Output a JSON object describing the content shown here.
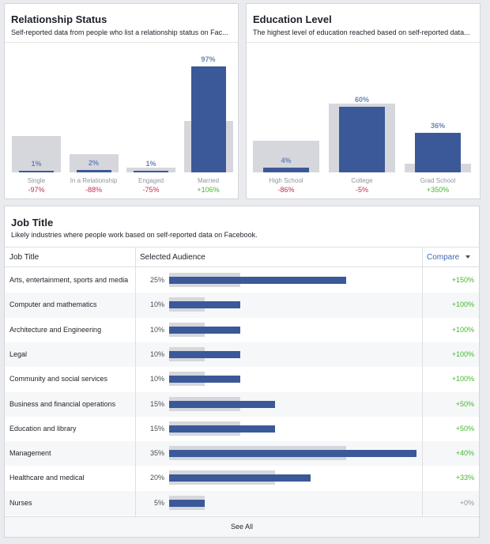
{
  "relationship": {
    "title": "Relationship Status",
    "subtitle": "Self-reported data from people who list a relationship status on Fac...",
    "items": [
      {
        "label": "Single",
        "pct": "1%",
        "cmp": "-97%",
        "sel": 1,
        "base": 33
      },
      {
        "label": "In a Relationship",
        "pct": "2%",
        "cmp": "-88%",
        "sel": 2,
        "base": 17
      },
      {
        "label": "Engaged",
        "pct": "1%",
        "cmp": "-75%",
        "sel": 1,
        "base": 4
      },
      {
        "label": "Married",
        "pct": "97%",
        "cmp": "+106%",
        "sel": 97,
        "base": 47
      }
    ]
  },
  "education": {
    "title": "Education Level",
    "subtitle": "The highest level of education reached based on self-reported data...",
    "items": [
      {
        "label": "High School",
        "pct": "4%",
        "cmp": "-86%",
        "sel": 4,
        "base": 29
      },
      {
        "label": "College",
        "pct": "60%",
        "cmp": "-5%",
        "sel": 60,
        "base": 63
      },
      {
        "label": "Grad School",
        "pct": "36%",
        "cmp": "+350%",
        "sel": 36,
        "base": 8
      }
    ]
  },
  "jobs": {
    "title": "Job Title",
    "subtitle": "Likely industries where people work based on self-reported data on Facebook.",
    "col_title": "Job Title",
    "col_audience": "Selected Audience",
    "col_compare": "Compare",
    "see_all": "See All",
    "rows": [
      {
        "name": "Arts, entertainment, sports and media",
        "pct": "25%",
        "sel": 25,
        "base": 10,
        "cmp": "+150%"
      },
      {
        "name": "Computer and mathematics",
        "pct": "10%",
        "sel": 10,
        "base": 5,
        "cmp": "+100%"
      },
      {
        "name": "Architecture and Engineering",
        "pct": "10%",
        "sel": 10,
        "base": 5,
        "cmp": "+100%"
      },
      {
        "name": "Legal",
        "pct": "10%",
        "sel": 10,
        "base": 5,
        "cmp": "+100%"
      },
      {
        "name": "Community and social services",
        "pct": "10%",
        "sel": 10,
        "base": 5,
        "cmp": "+100%"
      },
      {
        "name": "Business and financial operations",
        "pct": "15%",
        "sel": 15,
        "base": 10,
        "cmp": "+50%"
      },
      {
        "name": "Education and library",
        "pct": "15%",
        "sel": 15,
        "base": 10,
        "cmp": "+50%"
      },
      {
        "name": "Management",
        "pct": "35%",
        "sel": 35,
        "base": 25,
        "cmp": "+40%"
      },
      {
        "name": "Healthcare and medical",
        "pct": "20%",
        "sel": 20,
        "base": 15,
        "cmp": "+33%"
      },
      {
        "name": "Nurses",
        "pct": "5%",
        "sel": 5,
        "base": 5,
        "cmp": "+0%"
      }
    ]
  },
  "colors": {
    "accent": "#3b5998",
    "baseline": "#d6d7dd",
    "positive": "#42b72a",
    "negative": "#c1304f"
  }
}
